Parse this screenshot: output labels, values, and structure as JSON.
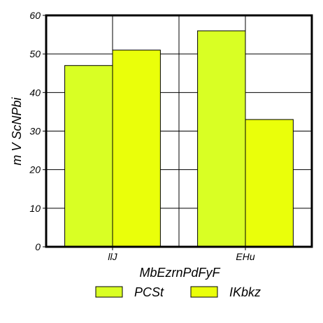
{
  "chart_data": {
    "type": "bar",
    "title": "",
    "xlabel": "MbEzrnPdFyF",
    "ylabel": "m V ScNPbi",
    "categories": [
      "llJ",
      "EHu"
    ],
    "series": [
      {
        "name": "PCSt",
        "values": [
          47,
          56
        ],
        "color": "#d9ff24"
      },
      {
        "name": "IKbkz",
        "values": [
          51,
          33
        ],
        "color": "#eaff0a"
      }
    ],
    "ylim": [
      0,
      60
    ],
    "yticks": [
      0,
      10,
      20,
      30,
      40,
      50,
      60
    ],
    "grid": true,
    "legend_position": "bottom"
  }
}
